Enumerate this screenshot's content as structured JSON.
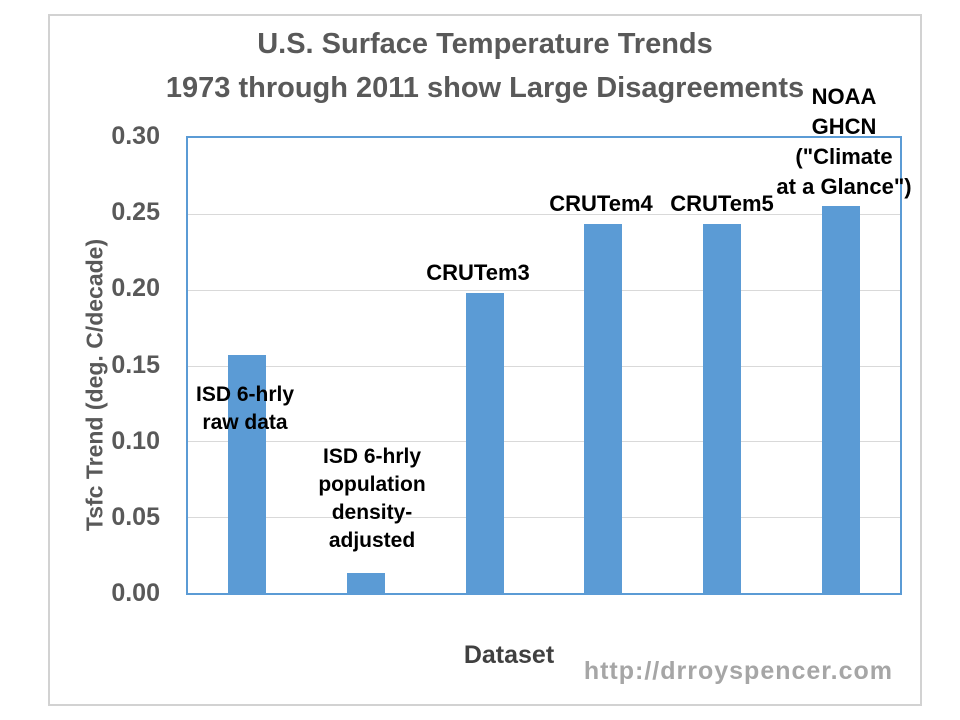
{
  "page": {
    "background_color": "#FFFFFF",
    "frame_border_color": "#D2D2D2"
  },
  "watermark_text": "http://drroyspencer.com",
  "chart_data": {
    "type": "bar",
    "title": "U.S. Surface Temperature Trends 1973 through 2011 show Large Disagreements",
    "title_lines": [
      "U.S. Surface Temperature Trends",
      "1973 through 2011 show Large Disagreements"
    ],
    "xlabel": "Dataset",
    "ylabel": "Tsfc Trend (deg. C/decade)",
    "ylim": [
      0,
      0.3
    ],
    "ytick_values": [
      0.0,
      0.05,
      0.1,
      0.15,
      0.2,
      0.25,
      0.3
    ],
    "ytick_labels": [
      "0.00",
      "0.05",
      "0.10",
      "0.15",
      "0.20",
      "0.25",
      "0.30"
    ],
    "grid": "horizontal",
    "legend": "none",
    "categories": [
      "ISD 6-hrly raw data",
      "ISD 6-hrly population density-adjusted",
      "CRUTem3",
      "CRUTem4",
      "CRUTem5",
      "NOAA GHCN (\"Climate at a Glance\")"
    ],
    "values": [
      0.157,
      0.013,
      0.198,
      0.243,
      0.243,
      0.255
    ],
    "annotations": [
      "ISD 6-hrly\nraw data",
      "ISD 6-hrly\npopulation\ndensity-\nadjusted",
      "CRUTem3",
      "CRUTem4",
      "CRUTem5",
      "NOAA\nGHCN\n(\"Climate\nat a Glance\")"
    ],
    "bar_color": "#5B9BD5",
    "plot_border_color": "#5B9BD5",
    "gridline_color": "#D9D9D9",
    "axis_text_color": "#595959",
    "annotation_text_color": "#000000",
    "watermark_color": "#A6A6A6"
  }
}
